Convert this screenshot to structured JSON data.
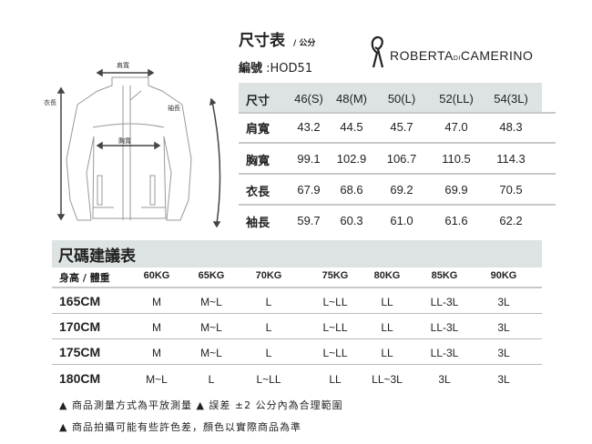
{
  "header": {
    "title": "尺寸表",
    "unit": "/ 公分",
    "code_label": "編號",
    "code_value": ":HOD51"
  },
  "brand": {
    "name_part1": "ROBERTA",
    "name_di": "DI",
    "name_part2": "CAMERINO"
  },
  "diagram": {
    "labels": {
      "shoulder": "肩寬",
      "length": "衣長",
      "sleeve": "袖長",
      "chest": "胸寬"
    }
  },
  "size_table": {
    "headers": [
      "尺寸",
      "46(S)",
      "48(M)",
      "50(L)",
      "52(LL)",
      "54(3L)"
    ],
    "rows": [
      {
        "label": "肩寬",
        "values": [
          "43.2",
          "44.5",
          "45.7",
          "47.0",
          "48.3"
        ]
      },
      {
        "label": "胸寬",
        "values": [
          "99.1",
          "102.9",
          "106.7",
          "110.5",
          "114.3"
        ]
      },
      {
        "label": "衣長",
        "values": [
          "67.9",
          "68.6",
          "69.2",
          "69.9",
          "70.5"
        ]
      },
      {
        "label": "袖長",
        "values": [
          "59.7",
          "60.3",
          "61.0",
          "61.6",
          "62.2"
        ]
      }
    ]
  },
  "recommend_table": {
    "title": "尺碼建議表",
    "corner": "身高 / 體重",
    "weights": [
      "60KG",
      "65KG",
      "70KG",
      "75KG",
      "80KG",
      "85KG",
      "90KG"
    ],
    "rows": [
      {
        "height": "165CM",
        "sizes": [
          "M",
          "M~L",
          "L",
          "L~LL",
          "LL",
          "LL-3L",
          "3L"
        ]
      },
      {
        "height": "170CM",
        "sizes": [
          "M",
          "M~L",
          "L",
          "L~LL",
          "LL",
          "LL-3L",
          "3L"
        ]
      },
      {
        "height": "175CM",
        "sizes": [
          "M",
          "M~L",
          "L",
          "L~LL",
          "LL",
          "LL-3L",
          "3L"
        ]
      },
      {
        "height": "180CM",
        "sizes": [
          "M~L",
          "L",
          "L~LL",
          "LL",
          "LL~3L",
          "3L",
          "3L"
        ]
      }
    ]
  },
  "notes": [
    "▲  商品測量方式為平放測量   ▲ 誤差 ±2 公分內為合理範圍",
    "▲  商品拍攝可能有些許色差，顏色以實際商品為準"
  ]
}
